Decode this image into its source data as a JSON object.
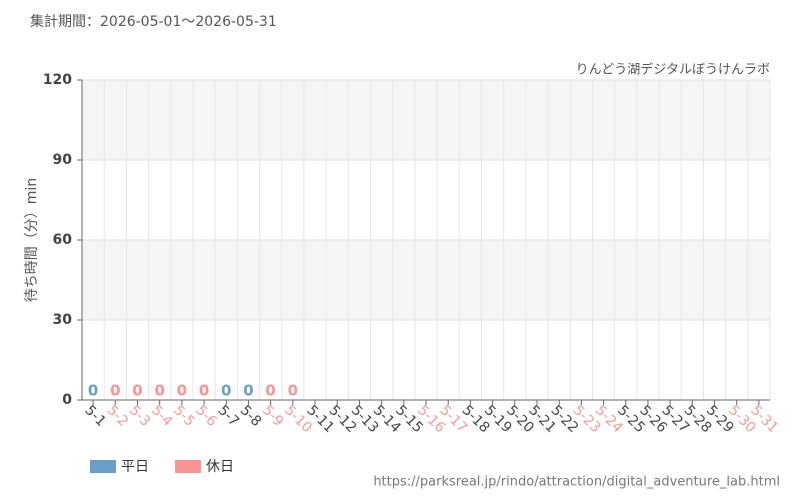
{
  "chart_data": {
    "type": "bar",
    "title": "集計期間：2026-05-01～2026-05-31",
    "subtitle": "りんどう湖デジタルぼうけんラボ",
    "y_label": "待ち時間（分）min",
    "source": "https://parksreal.jp/rindo/attraction/digital_adventure_lab.html",
    "categories": [
      "5-1",
      "5-2",
      "5-3",
      "5-4",
      "5-5",
      "5-6",
      "5-7",
      "5-8",
      "5-9",
      "5-10",
      "5-11",
      "5-12",
      "5-13",
      "5-14",
      "5-15",
      "5-16",
      "5-17",
      "5-18",
      "5-19",
      "5-20",
      "5-21",
      "5-22",
      "5-23",
      "5-24",
      "5-25",
      "5-26",
      "5-27",
      "5-28",
      "5-29",
      "5-30",
      "5-31"
    ],
    "category_colors": [
      "#444",
      "#f59a9a",
      "#f59a9a",
      "#f59a9a",
      "#f59a9a",
      "#f59a9a",
      "#444",
      "#444",
      "#f59a9a",
      "#f59a9a",
      "#444",
      "#444",
      "#444",
      "#444",
      "#444",
      "#f59a9a",
      "#f59a9a",
      "#444",
      "#444",
      "#444",
      "#444",
      "#444",
      "#f59a9a",
      "#f59a9a",
      "#444",
      "#444",
      "#444",
      "#444",
      "#444",
      "#f59a9a",
      "#f59a9a"
    ],
    "series": [
      {
        "name": "平日",
        "color": "#6a9dc8",
        "values": [
          0,
          null,
          null,
          null,
          null,
          null,
          0,
          0,
          null,
          null,
          null,
          null,
          null,
          null,
          null,
          null,
          null,
          null,
          null,
          null,
          null,
          null,
          null,
          null,
          null,
          null,
          null,
          null,
          null,
          null,
          null
        ]
      },
      {
        "name": "休日",
        "color": "#f99494",
        "values": [
          null,
          0,
          0,
          0,
          0,
          0,
          null,
          null,
          0,
          0,
          null,
          null,
          null,
          null,
          null,
          null,
          null,
          null,
          null,
          null,
          null,
          null,
          null,
          null,
          null,
          null,
          null,
          null,
          null,
          null,
          null
        ]
      }
    ],
    "ylim": [
      0,
      120
    ],
    "yticks": [
      0,
      30,
      60,
      90,
      120
    ],
    "grid": true
  }
}
